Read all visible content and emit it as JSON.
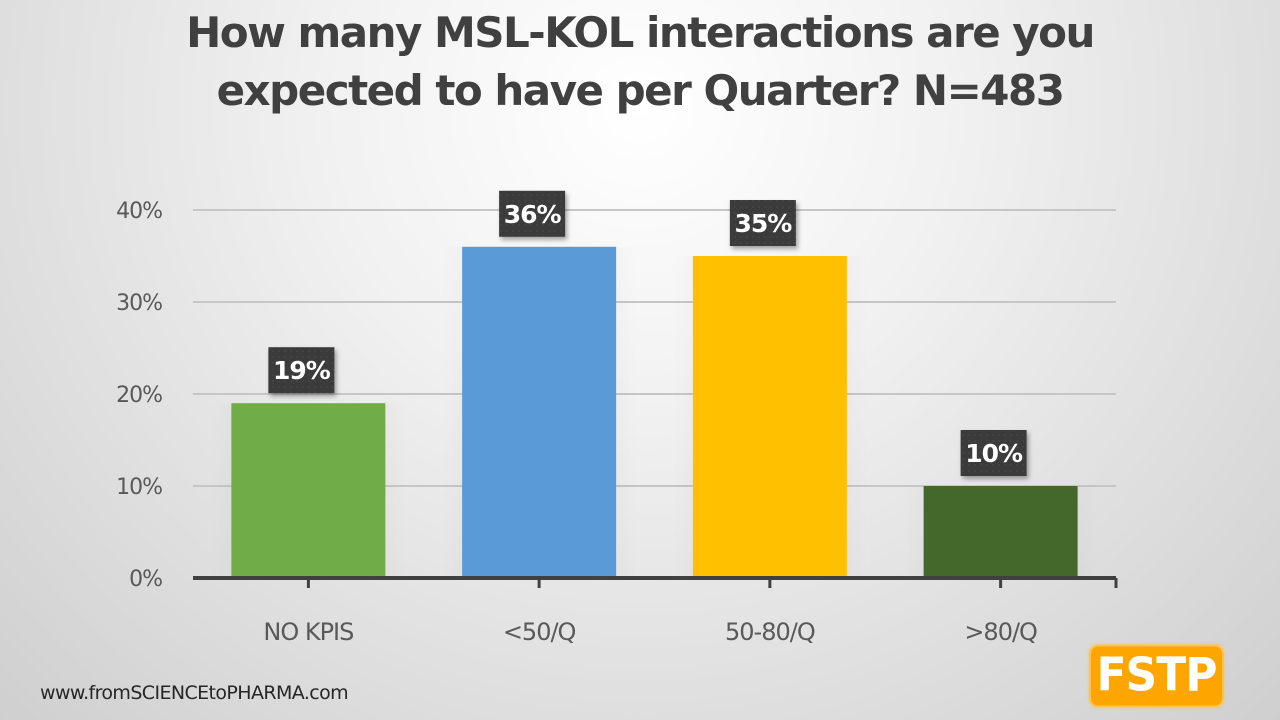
{
  "chart_data": {
    "type": "bar",
    "title": "How many MSL-KOL interactions are you expected to have per Quarter? N=483",
    "title_lines": [
      "How many MSL-KOL interactions are you",
      "expected to have per Quarter? N=483"
    ],
    "categories": [
      "NO KPIS",
      "<50/Q",
      "50-80/Q",
      ">80/Q"
    ],
    "values": [
      19,
      36,
      35,
      10
    ],
    "value_labels": [
      "19%",
      "36%",
      "35%",
      "10%"
    ],
    "colors": [
      "#70ad47",
      "#5b9bd5",
      "#ffc000",
      "#43682b"
    ],
    "unit": "%",
    "xlabel": "",
    "ylabel": "",
    "ylim": [
      0,
      40
    ],
    "yticks": [
      0,
      10,
      20,
      30,
      40
    ],
    "ytick_labels": [
      "0%",
      "10%",
      "20%",
      "30%",
      "40%"
    ],
    "grid": true,
    "legend": "none"
  },
  "footer": {
    "url": "www.fromSCIENCEtoPHARMA.com",
    "logo_text": "FSTP",
    "logo_color": "#ffa500"
  }
}
